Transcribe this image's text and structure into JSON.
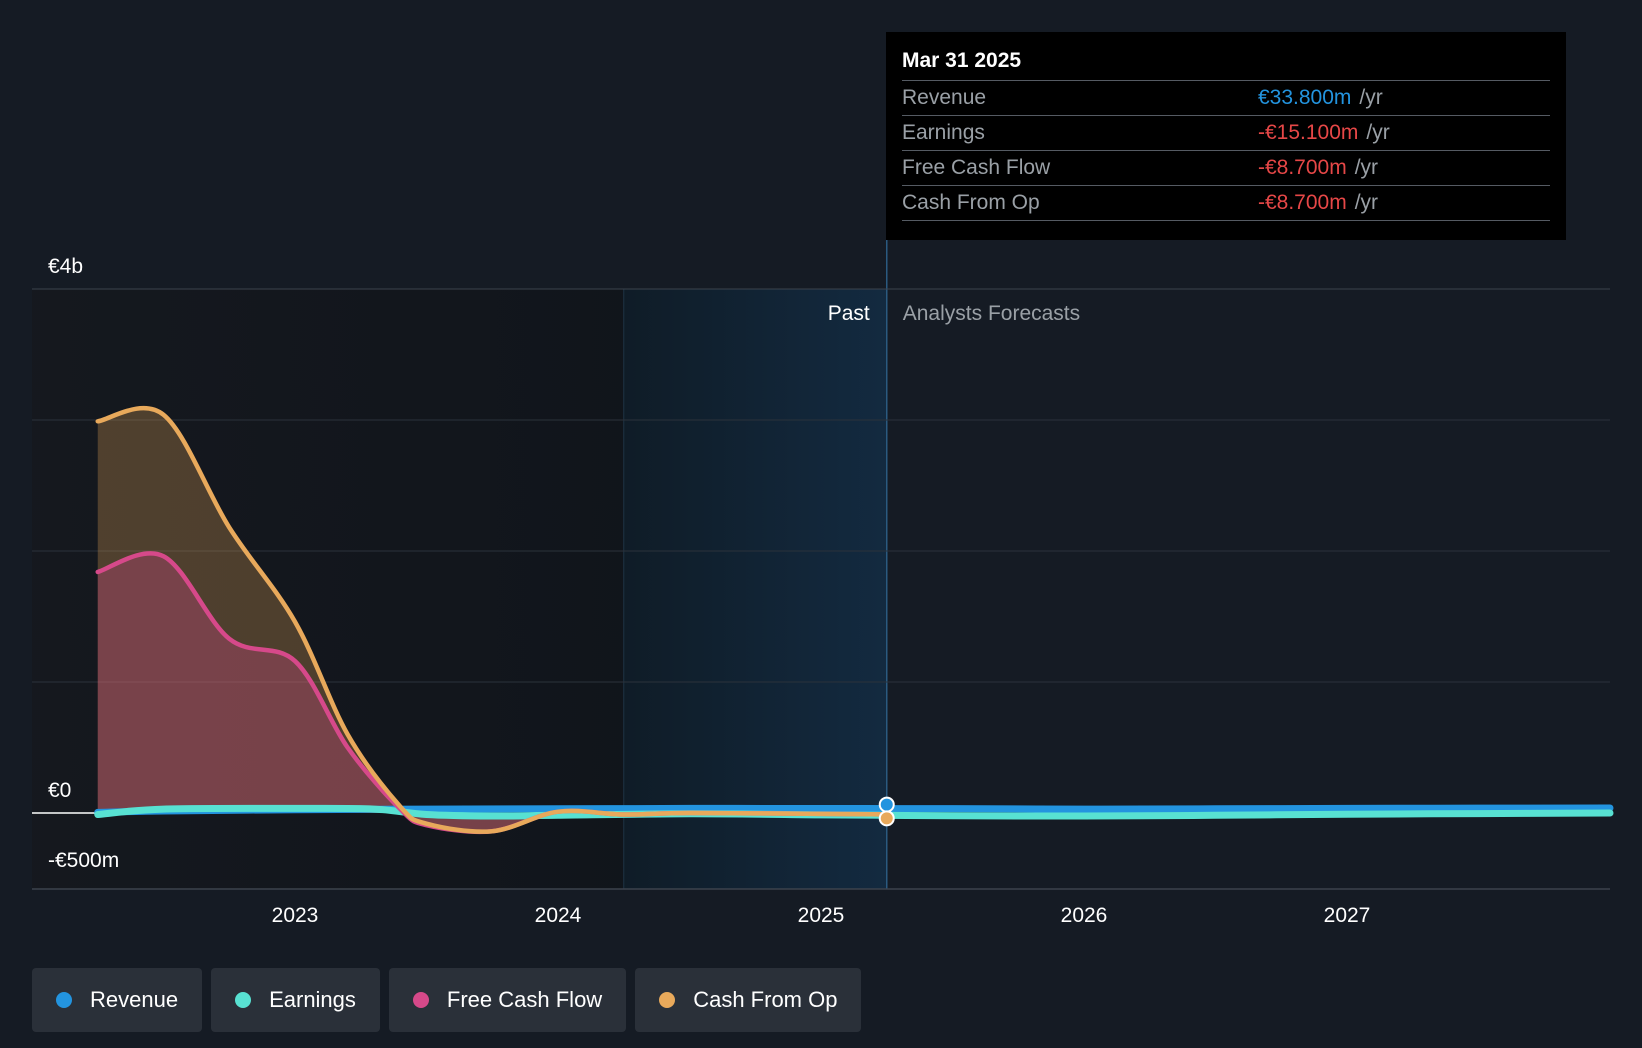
{
  "chart_data": {
    "type": "area",
    "y_tick_labels": [
      "€4b",
      "€0",
      "-€500m"
    ],
    "x_tick_labels": [
      "2023",
      "2024",
      "2025",
      "2026",
      "2027"
    ],
    "ylim": [
      -500,
      4000
    ],
    "y_unit": "€m",
    "grid": "horizontal",
    "divider_label_past": "Past",
    "divider_label_forecast": "Analysts Forecasts",
    "past_divider_date": 2025.25,
    "series": [
      {
        "name": "Revenue",
        "color": "#2394df",
        "filled": false,
        "x": [
          2022.25,
          2022.5,
          2023.0,
          2023.5,
          2024.0,
          2024.5,
          2025.0,
          2025.25,
          2025.5,
          2026.0,
          2026.5,
          2027.0,
          2027.5,
          2028.0
        ],
        "y": [
          5,
          15,
          25,
          30,
          32,
          35,
          34,
          33.8,
          33,
          30,
          32,
          35,
          37,
          38
        ]
      },
      {
        "name": "Earnings",
        "color": "#58e1d2",
        "filled": false,
        "x": [
          2022.25,
          2022.5,
          2023.0,
          2023.3,
          2023.5,
          2023.75,
          2024.0,
          2024.5,
          2025.0,
          2025.25,
          2025.5,
          2026.0,
          2026.5,
          2027.0,
          2027.5,
          2028.0
        ],
        "y": [
          -10,
          30,
          35,
          30,
          -10,
          -20,
          -15,
          -5,
          -12,
          -15.1,
          -18,
          -20,
          -15,
          -8,
          -4,
          0
        ]
      },
      {
        "name": "Free Cash Flow",
        "color": "#d6498a",
        "filled": true,
        "x": [
          2022.25,
          2022.5,
          2022.75,
          2023.0,
          2023.2,
          2023.4,
          2023.5,
          2023.75,
          2024.0,
          2024.25,
          2024.5,
          2025.0,
          2025.25
        ],
        "y": [
          1840,
          1960,
          1330,
          1160,
          500,
          30,
          -80,
          -120,
          10,
          -10,
          0,
          -6,
          -8.7
        ]
      },
      {
        "name": "Cash From Op",
        "color": "#e8a95b",
        "filled": true,
        "x": [
          2022.25,
          2022.5,
          2022.75,
          2023.0,
          2023.2,
          2023.4,
          2023.5,
          2023.75,
          2024.0,
          2024.25,
          2024.5,
          2025.0,
          2025.25
        ],
        "y": [
          2990,
          3040,
          2180,
          1460,
          600,
          50,
          -70,
          -120,
          10,
          -10,
          0,
          -6,
          -8.7
        ]
      }
    ]
  },
  "tooltip": {
    "date": "Mar 31 2025",
    "rows": [
      {
        "label": "Revenue",
        "value": "€33.800m",
        "unit": "/yr",
        "color": "#2394df"
      },
      {
        "label": "Earnings",
        "value": "-€15.100m",
        "unit": "/yr",
        "color": "#e64747"
      },
      {
        "label": "Free Cash Flow",
        "value": "-€8.700m",
        "unit": "/yr",
        "color": "#e64747"
      },
      {
        "label": "Cash From Op",
        "value": "-€8.700m",
        "unit": "/yr",
        "color": "#e64747"
      }
    ]
  },
  "legend": [
    {
      "label": "Revenue",
      "color": "#2394df"
    },
    {
      "label": "Earnings",
      "color": "#58e1d2"
    },
    {
      "label": "Free Cash Flow",
      "color": "#d6498a"
    },
    {
      "label": "Cash From Op",
      "color": "#e8a95b"
    }
  ]
}
